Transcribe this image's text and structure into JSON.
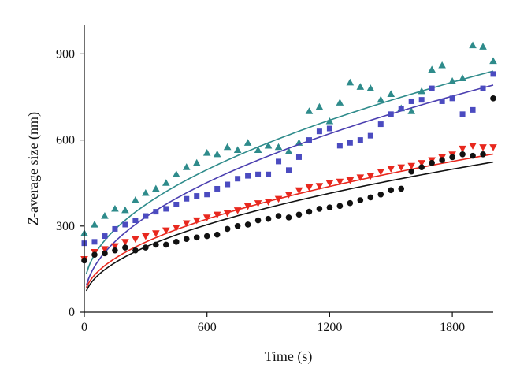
{
  "chart_data": {
    "type": "scatter",
    "title": "",
    "xlabel": "Time (s)",
    "ylabel_prefix": "Z",
    "ylabel_rest": "-average size (nm)",
    "xlim": [
      0,
      2000
    ],
    "ylim": [
      0,
      1000
    ],
    "xticks": [
      0,
      600,
      1200,
      1800
    ],
    "yticks": [
      0,
      300,
      600,
      900
    ],
    "grid": false,
    "legend": "none",
    "series": [
      {
        "marker": "triangle-up",
        "color": "#2e8b8b",
        "fit_color": "#2e8b8b",
        "fit": {
          "a": 80,
          "b": 17,
          "p": 0.5
        },
        "points": [
          [
            0,
            275
          ],
          [
            50,
            305
          ],
          [
            100,
            335
          ],
          [
            150,
            360
          ],
          [
            200,
            355
          ],
          [
            250,
            390
          ],
          [
            300,
            415
          ],
          [
            350,
            430
          ],
          [
            400,
            450
          ],
          [
            450,
            480
          ],
          [
            500,
            505
          ],
          [
            550,
            520
          ],
          [
            600,
            555
          ],
          [
            650,
            550
          ],
          [
            700,
            575
          ],
          [
            750,
            565
          ],
          [
            800,
            590
          ],
          [
            850,
            565
          ],
          [
            900,
            580
          ],
          [
            950,
            575
          ],
          [
            1000,
            560
          ],
          [
            1050,
            590
          ],
          [
            1100,
            700
          ],
          [
            1150,
            715
          ],
          [
            1200,
            665
          ],
          [
            1250,
            730
          ],
          [
            1300,
            800
          ],
          [
            1350,
            785
          ],
          [
            1400,
            780
          ],
          [
            1450,
            740
          ],
          [
            1500,
            760
          ],
          [
            1550,
            710
          ],
          [
            1600,
            700
          ],
          [
            1650,
            770
          ],
          [
            1700,
            845
          ],
          [
            1750,
            860
          ],
          [
            1800,
            805
          ],
          [
            1850,
            815
          ],
          [
            1900,
            930
          ],
          [
            1950,
            925
          ],
          [
            2000,
            875
          ]
        ]
      },
      {
        "marker": "square",
        "color": "#4b4bc0",
        "fit_color": "#4b3fb0",
        "fit": {
          "a": 40,
          "b": 16.8,
          "p": 0.5
        },
        "points": [
          [
            0,
            240
          ],
          [
            50,
            245
          ],
          [
            100,
            265
          ],
          [
            150,
            290
          ],
          [
            200,
            305
          ],
          [
            250,
            320
          ],
          [
            300,
            335
          ],
          [
            350,
            350
          ],
          [
            400,
            360
          ],
          [
            450,
            375
          ],
          [
            500,
            395
          ],
          [
            550,
            405
          ],
          [
            600,
            410
          ],
          [
            650,
            430
          ],
          [
            700,
            445
          ],
          [
            750,
            465
          ],
          [
            800,
            475
          ],
          [
            850,
            480
          ],
          [
            900,
            480
          ],
          [
            950,
            525
          ],
          [
            1000,
            495
          ],
          [
            1050,
            540
          ],
          [
            1100,
            600
          ],
          [
            1150,
            630
          ],
          [
            1200,
            640
          ],
          [
            1250,
            580
          ],
          [
            1300,
            590
          ],
          [
            1350,
            600
          ],
          [
            1400,
            615
          ],
          [
            1450,
            655
          ],
          [
            1500,
            690
          ],
          [
            1550,
            710
          ],
          [
            1600,
            735
          ],
          [
            1650,
            740
          ],
          [
            1700,
            780
          ],
          [
            1750,
            735
          ],
          [
            1800,
            745
          ],
          [
            1850,
            690
          ],
          [
            1900,
            705
          ],
          [
            1950,
            780
          ],
          [
            2000,
            830
          ]
        ]
      },
      {
        "marker": "triangle-down",
        "color": "#e8281e",
        "fit_color": "#e8281e",
        "fit": {
          "a": 50,
          "b": 11.2,
          "p": 0.5
        },
        "points": [
          [
            0,
            185
          ],
          [
            50,
            210
          ],
          [
            100,
            220
          ],
          [
            150,
            230
          ],
          [
            200,
            245
          ],
          [
            250,
            255
          ],
          [
            300,
            265
          ],
          [
            350,
            275
          ],
          [
            400,
            285
          ],
          [
            450,
            295
          ],
          [
            500,
            310
          ],
          [
            550,
            320
          ],
          [
            600,
            330
          ],
          [
            650,
            340
          ],
          [
            700,
            345
          ],
          [
            750,
            355
          ],
          [
            800,
            370
          ],
          [
            850,
            380
          ],
          [
            900,
            385
          ],
          [
            950,
            395
          ],
          [
            1000,
            410
          ],
          [
            1050,
            425
          ],
          [
            1100,
            435
          ],
          [
            1150,
            440
          ],
          [
            1200,
            450
          ],
          [
            1250,
            455
          ],
          [
            1300,
            460
          ],
          [
            1350,
            470
          ],
          [
            1400,
            475
          ],
          [
            1450,
            490
          ],
          [
            1500,
            500
          ],
          [
            1550,
            505
          ],
          [
            1600,
            510
          ],
          [
            1650,
            520
          ],
          [
            1700,
            530
          ],
          [
            1750,
            540
          ],
          [
            1800,
            550
          ],
          [
            1850,
            570
          ],
          [
            1900,
            580
          ],
          [
            1950,
            575
          ],
          [
            2000,
            575
          ]
        ]
      },
      {
        "marker": "circle",
        "color": "#111111",
        "fit_color": "#111111",
        "fit": {
          "a": 40,
          "b": 10.8,
          "p": 0.5
        },
        "points": [
          [
            0,
            180
          ],
          [
            50,
            200
          ],
          [
            100,
            205
          ],
          [
            150,
            215
          ],
          [
            200,
            225
          ],
          [
            250,
            215
          ],
          [
            300,
            225
          ],
          [
            350,
            235
          ],
          [
            400,
            235
          ],
          [
            450,
            245
          ],
          [
            500,
            255
          ],
          [
            550,
            260
          ],
          [
            600,
            265
          ],
          [
            650,
            270
          ],
          [
            700,
            290
          ],
          [
            750,
            300
          ],
          [
            800,
            305
          ],
          [
            850,
            320
          ],
          [
            900,
            325
          ],
          [
            950,
            335
          ],
          [
            1000,
            330
          ],
          [
            1050,
            340
          ],
          [
            1100,
            350
          ],
          [
            1150,
            360
          ],
          [
            1200,
            365
          ],
          [
            1250,
            370
          ],
          [
            1300,
            380
          ],
          [
            1350,
            390
          ],
          [
            1400,
            400
          ],
          [
            1450,
            410
          ],
          [
            1500,
            425
          ],
          [
            1550,
            430
          ],
          [
            1600,
            490
          ],
          [
            1650,
            505
          ],
          [
            1700,
            520
          ],
          [
            1750,
            530
          ],
          [
            1800,
            540
          ],
          [
            1850,
            550
          ],
          [
            1900,
            545
          ],
          [
            1950,
            550
          ],
          [
            2000,
            745
          ]
        ]
      }
    ]
  }
}
